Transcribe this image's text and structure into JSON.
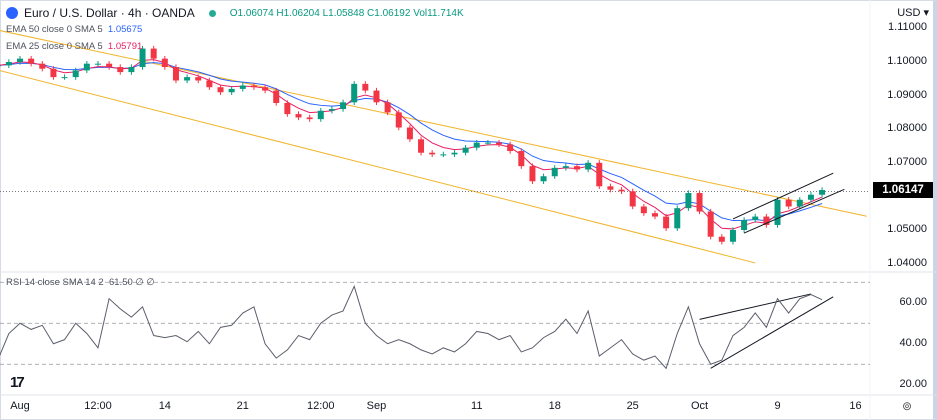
{
  "header": {
    "symbol": "Euro / U.S. Dollar · 4h · OANDA",
    "ohlc": "O1.06074 H1.06204 L1.05848 C1.06192 Vol11.714K",
    "ema50": {
      "label": "EMA 50 close 0 SMA 5",
      "value": "1.05675"
    },
    "ema25": {
      "label": "EMA 25 close 0 SMA 5",
      "value": "1.05791"
    },
    "rsi": {
      "label": "RSI 14 close SMA 14 2",
      "value": "61.50",
      "extra": "∅ ∅"
    },
    "currency": "USD"
  },
  "chart_data": [
    {
      "type": "candlestick",
      "title": "Euro / U.S. Dollar · 4h · OANDA",
      "ylim": [
        1.0375,
        1.1125
      ],
      "y_ticks": [
        "1.11000",
        "1.10000",
        "1.09000",
        "1.08000",
        "1.07000",
        "1.05000",
        "1.04000"
      ],
      "last_price": "1.06147",
      "colors": {
        "up": "#089981",
        "down": "#f23645",
        "ema50": "#2962ff",
        "ema25": "#e91e63",
        "channel": "#f0b429",
        "wedge": "#131722"
      },
      "dates": [
        "07-30",
        "07-31",
        "08-01",
        "08-02",
        "08-03",
        "08-04",
        "08-05",
        "08-06",
        "08-07",
        "08-08",
        "08-09",
        "08-10",
        "08-11",
        "08-12",
        "08-13",
        "08-14",
        "08-15",
        "08-16",
        "08-17",
        "08-18",
        "08-19",
        "08-20",
        "08-21",
        "08-22",
        "08-23",
        "08-24",
        "08-25",
        "08-26",
        "08-27",
        "08-28",
        "08-29",
        "08-30",
        "08-31",
        "09-01",
        "09-02",
        "09-03",
        "09-04",
        "09-05",
        "09-06",
        "09-07",
        "09-08",
        "09-09",
        "09-10",
        "09-11",
        "09-12",
        "09-13",
        "09-14",
        "09-15",
        "09-16",
        "09-17",
        "09-18",
        "09-19",
        "09-20",
        "09-21",
        "09-22",
        "09-23",
        "09-24",
        "09-25",
        "09-26",
        "09-27",
        "09-28",
        "09-29",
        "09-30",
        "10-01",
        "10-02",
        "10-03",
        "10-04",
        "10-05",
        "10-06",
        "10-07",
        "10-08",
        "10-09",
        "10-10",
        "10-11",
        "10-12"
      ],
      "close": [
        1.099,
        1.1,
        1.101,
        1.0995,
        1.098,
        1.0955,
        1.0955,
        1.0975,
        1.0995,
        1.0995,
        1.0985,
        1.097,
        1.0985,
        1.104,
        1.101,
        1.0985,
        1.0945,
        1.0955,
        1.0945,
        1.0925,
        1.091,
        1.092,
        1.093,
        1.0925,
        1.0915,
        1.0878,
        1.0845,
        1.0835,
        1.083,
        1.0855,
        1.086,
        1.088,
        1.0935,
        1.0915,
        1.088,
        1.085,
        1.0805,
        1.077,
        1.073,
        1.0725,
        1.0725,
        1.073,
        1.0745,
        1.076,
        1.076,
        1.0755,
        1.0735,
        1.069,
        1.0645,
        1.066,
        1.0685,
        1.069,
        1.068,
        1.07,
        1.063,
        1.062,
        1.0615,
        1.057,
        1.055,
        1.054,
        1.0505,
        1.0565,
        1.061,
        1.0555,
        1.048,
        1.0465,
        1.05,
        1.053,
        1.054,
        1.0515,
        1.059,
        1.057,
        1.059,
        1.0605,
        1.0619
      ],
      "channel": [
        {
          "from": [
            "07-30",
            1.1095
          ],
          "to": [
            "10-16",
            1.0541
          ]
        },
        {
          "from": [
            "07-30",
            1.0976
          ],
          "to": [
            "10-06",
            1.0402
          ]
        }
      ],
      "wedge": [
        {
          "from": [
            "10-04",
            1.0533
          ],
          "to": [
            "10-13",
            1.0669
          ]
        },
        {
          "from": [
            "10-05",
            1.0491
          ],
          "to": [
            "10-14",
            1.0621
          ]
        }
      ]
    },
    {
      "type": "line",
      "title": "RSI 14 close SMA 14 2",
      "ylim": [
        15,
        75
      ],
      "y_ticks": [
        "60.00",
        "40.00",
        "20.00"
      ],
      "bands": [
        70,
        50,
        30
      ],
      "color": "#131722",
      "values": [
        32,
        45,
        50,
        47,
        49,
        40,
        42,
        50,
        45,
        38,
        62,
        57,
        53,
        58,
        44,
        43,
        44,
        41,
        46,
        40,
        48,
        49,
        55,
        58,
        40,
        33,
        37,
        44,
        42,
        50,
        54,
        56,
        68,
        50,
        44,
        40,
        42,
        40,
        37,
        35,
        38,
        36,
        40,
        46,
        45,
        42,
        44,
        36,
        38,
        43,
        46,
        52,
        45,
        56,
        34,
        38,
        42,
        35,
        32,
        34,
        28,
        45,
        58,
        40,
        30,
        32,
        44,
        48,
        55,
        48,
        62,
        55,
        62,
        64,
        61.5
      ],
      "wedge": [
        {
          "from": [
            "10-01",
            51.9
          ],
          "to": [
            "10-11",
            64.3
          ]
        },
        {
          "from": [
            "10-02",
            28
          ],
          "to": [
            "10-13",
            62.9
          ]
        }
      ]
    }
  ],
  "x_ticks": [
    {
      "label": "Aug",
      "at": "08-01"
    },
    {
      "label": "12:00",
      "at": "08-08"
    },
    {
      "label": "14",
      "at": "08-14"
    },
    {
      "label": "21",
      "at": "08-21"
    },
    {
      "label": "12:00",
      "at": "08-28"
    },
    {
      "label": "Sep",
      "at": "09-02"
    },
    {
      "label": "11",
      "at": "09-11"
    },
    {
      "label": "18",
      "at": "09-18"
    },
    {
      "label": "25",
      "at": "09-25"
    },
    {
      "label": "Oct",
      "at": "10-01"
    },
    {
      "label": "9",
      "at": "10-08"
    },
    {
      "label": "16",
      "at": "10-15"
    }
  ]
}
